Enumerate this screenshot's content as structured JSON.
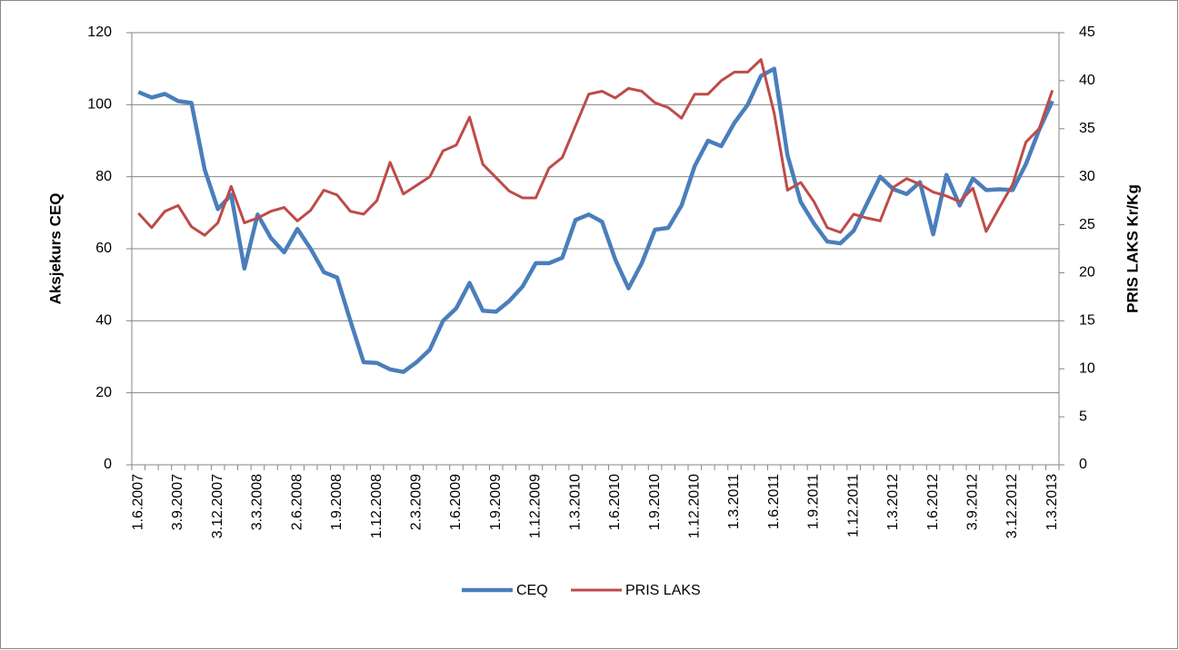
{
  "chart_data": {
    "type": "line",
    "categories": [
      "1.6.2007",
      null,
      null,
      "3.9.2007",
      null,
      null,
      "3.12.2007",
      null,
      null,
      "3.3.2008",
      null,
      null,
      "2.6.2008",
      null,
      null,
      "1.9.2008",
      null,
      null,
      "1.12.2008",
      null,
      null,
      "2.3.2009",
      null,
      null,
      "1.6.2009",
      null,
      null,
      "1.9.2009",
      null,
      null,
      "1.12.2009",
      null,
      null,
      "1.3.2010",
      null,
      null,
      "1.6.2010",
      null,
      null,
      "1.9.2010",
      null,
      null,
      "1.12.2010",
      null,
      null,
      "1.3.2011",
      null,
      null,
      "1.6.2011",
      null,
      null,
      "1.9.2011",
      null,
      null,
      "1.12.2011",
      null,
      null,
      "1.3.2012",
      null,
      null,
      "1.6.2012",
      null,
      null,
      "3.9.2012",
      null,
      null,
      "3.12.2012",
      null,
      null,
      "1.3.2013"
    ],
    "y_label": "Aksjekurs CEQ",
    "y2_label": "PRIS LAKS Kr/Kg",
    "ylim": [
      0,
      120
    ],
    "yticks": [
      0,
      20,
      40,
      60,
      80,
      100,
      120
    ],
    "y2lim": [
      0,
      45
    ],
    "y2ticks": [
      0,
      5,
      10,
      15,
      20,
      25,
      30,
      35,
      40,
      45
    ],
    "grid": true,
    "legend": "bottom",
    "series": [
      {
        "name": "CEQ",
        "color": "#4a7ebb",
        "values": [
          103.5,
          102,
          103,
          101,
          100.5,
          82,
          71,
          75,
          54.5,
          69.5,
          63,
          59,
          65.5,
          60,
          53.5,
          52,
          40,
          28.5,
          28.3,
          26.5,
          25.8,
          28.5,
          32,
          40,
          43.5,
          50.5,
          42.8,
          42.5,
          45.5,
          49.5,
          56,
          56,
          57.5,
          68,
          69.5,
          67.5,
          57,
          49,
          56,
          65.3,
          65.8,
          72,
          83,
          90,
          88.5,
          95,
          100,
          108,
          110,
          86,
          73,
          67,
          62,
          61.5,
          65,
          72.5,
          80,
          76.5,
          75.2,
          78.5,
          64,
          80.5,
          72,
          79.5,
          76.3,
          76.5,
          76.3,
          83.5,
          93,
          101
        ]
      },
      {
        "name": "PRIS LAKS",
        "color": "#be4b48",
        "axis": "y2",
        "values": [
          26.2,
          24.7,
          26.4,
          27,
          24.8,
          23.9,
          25.2,
          29,
          25.2,
          25.7,
          26.4,
          26.8,
          25.4,
          26.5,
          28.6,
          28.1,
          26.4,
          26.1,
          27.5,
          31.5,
          28.2,
          29.1,
          30,
          32.7,
          33.3,
          36.2,
          31.3,
          29.9,
          28.5,
          27.8,
          27.8,
          30.9,
          32,
          35.3,
          38.6,
          38.9,
          38.2,
          39.2,
          38.9,
          37.7,
          37.2,
          36.1,
          38.6,
          38.6,
          40,
          40.9,
          40.9,
          42.2,
          36.6,
          28.6,
          29.4,
          27.4,
          24.7,
          24.2,
          26.1,
          25.7,
          25.4,
          28.9,
          29.8,
          29.2,
          28.4,
          28,
          27.4,
          28.8,
          24.3,
          26.8,
          29.2,
          33.6,
          35,
          39
        ]
      }
    ]
  }
}
